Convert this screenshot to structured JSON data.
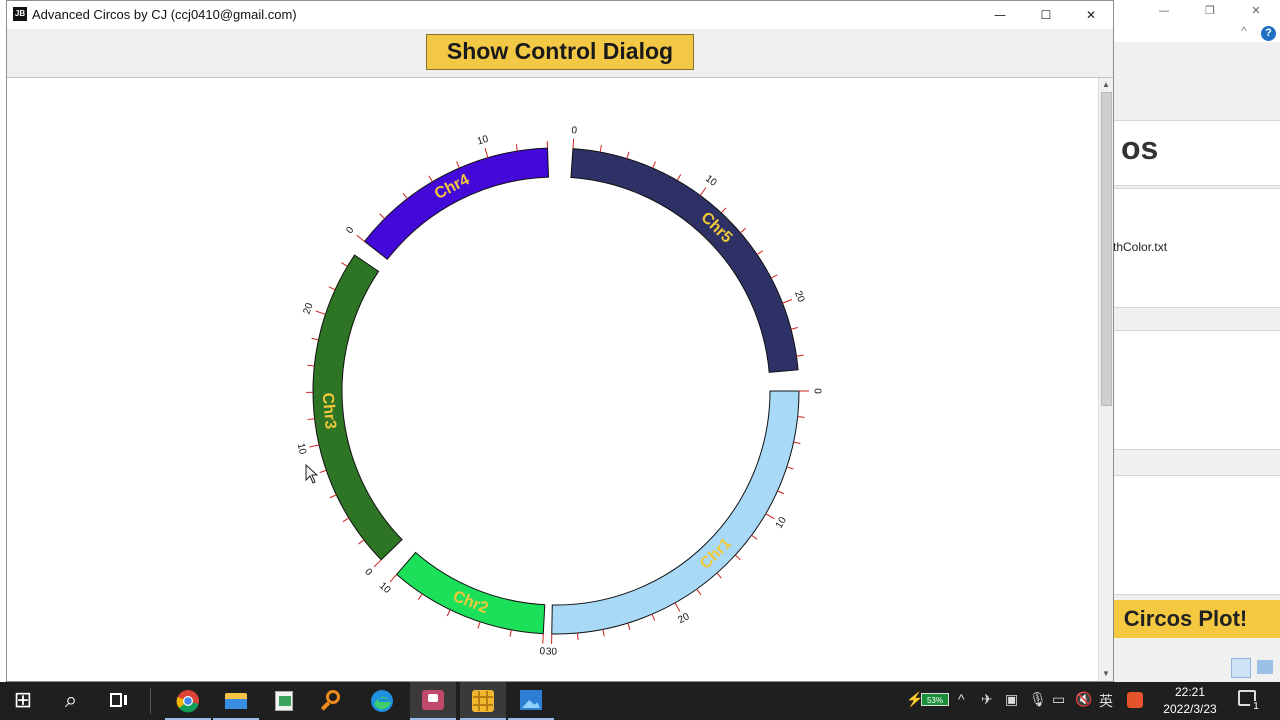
{
  "window": {
    "app_icon_text": "JB",
    "title": "Advanced Circos by CJ (ccj0410@gmail.com)",
    "minimize_glyph": "—",
    "maximize_glyph": "☐",
    "close_glyph": "✕"
  },
  "toolbar": {
    "show_dialog_label": "Show Control Dialog"
  },
  "circos": {
    "chromosomes": [
      {
        "name": "Chr1",
        "color": "#a8daf8",
        "length": 30,
        "start_angle": 90,
        "end_angle": 181,
        "labeled_ticks": [
          0,
          10,
          20,
          30
        ]
      },
      {
        "name": "Chr2",
        "color": "#1de05a",
        "length": 10,
        "start_angle": 183,
        "end_angle": 221,
        "labeled_ticks": [
          0,
          10
        ]
      },
      {
        "name": "Chr3",
        "color": "#2e7425",
        "length": 25,
        "start_angle": 226,
        "end_angle": 304,
        "labeled_ticks": [
          0,
          10,
          20
        ]
      },
      {
        "name": "Chr4",
        "color": "#4209d8",
        "length": 14,
        "start_angle": 308,
        "end_angle": 358,
        "labeled_ticks": [
          0,
          10
        ]
      },
      {
        "name": "Chr5",
        "color": "#2d3166",
        "length": 25,
        "start_angle": 4,
        "end_angle": 85,
        "labeled_ticks": [
          0,
          10,
          20
        ]
      }
    ],
    "label_color": "#f0c83a",
    "tick_color": "#cc2020",
    "tick_label_color": "#111111"
  },
  "background_window": {
    "caption_glyphs": [
      "—",
      "❐",
      "✕"
    ],
    "help_icon": "?",
    "chevron": "^",
    "heading_fragment": "os",
    "file_fragment": "thColor.txt",
    "plot_button_fragment": "Circos Plot!"
  },
  "taskbar": {
    "start_glyph": "⊞",
    "search_glyph": "⌕",
    "battery_percent": "53%",
    "tray_chevron": "^",
    "language": "英",
    "time": "22:21",
    "date": "2022/3/23",
    "notification_count": "1"
  }
}
